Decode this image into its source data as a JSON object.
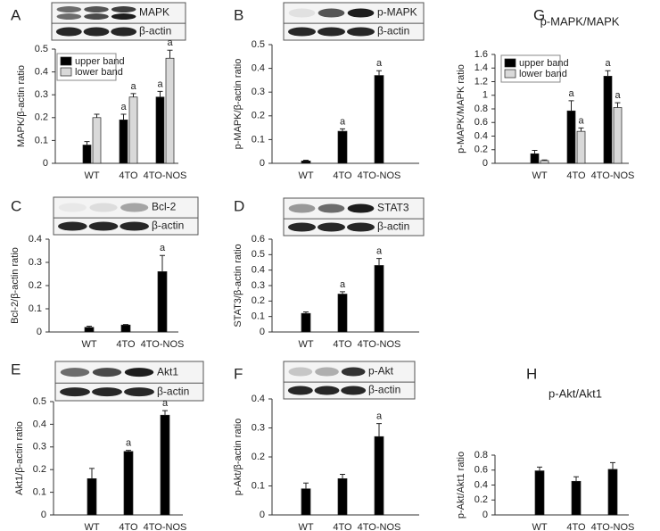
{
  "chart_data": [
    {
      "type": "bar",
      "panel": "A",
      "blot_labels": [
        "MAPK",
        "β-actin"
      ],
      "y_label": "MAPK/β-actin ratio",
      "categories": [
        "WT",
        "4TO",
        "4TO-NOS"
      ],
      "ylim": [
        0,
        0.5
      ],
      "yticks": [
        0,
        0.1,
        0.2,
        0.3,
        0.4,
        0.5
      ],
      "series": [
        {
          "name": "upper band",
          "color": "#000000",
          "values": [
            0.08,
            0.19,
            0.29
          ],
          "errors": [
            0.015,
            0.025,
            0.025
          ],
          "labels": [
            null,
            "a",
            "a"
          ]
        },
        {
          "name": "lower band",
          "color": "#d9d9d9",
          "values": [
            0.2,
            0.29,
            0.46
          ],
          "errors": [
            0.015,
            0.015,
            0.035
          ],
          "labels": [
            null,
            "a",
            "a"
          ]
        }
      ]
    },
    {
      "type": "bar",
      "panel": "B",
      "blot_labels": [
        "p-MAPK",
        "β-actin"
      ],
      "y_label": "p-MAPK/β-actin ratio",
      "categories": [
        "WT",
        "4TO",
        "4TO-NOS"
      ],
      "ylim": [
        0,
        0.5
      ],
      "yticks": [
        0,
        0.1,
        0.2,
        0.3,
        0.4,
        0.5
      ],
      "color": "#000000",
      "values": [
        0.01,
        0.135,
        0.37
      ],
      "errors": [
        0.003,
        0.01,
        0.02
      ],
      "labels": [
        null,
        "a",
        "a"
      ]
    },
    {
      "type": "bar",
      "panel": "G",
      "title": "p-MAPK/MAPK",
      "y_label": "p-MAPK/MAPK ratio",
      "categories": [
        "WT",
        "4TO",
        "4TO-NOS"
      ],
      "ylim": [
        0,
        1.6
      ],
      "yticks": [
        0,
        0.2,
        0.4,
        0.6,
        0.8,
        1,
        1.2,
        1.4,
        1.6
      ],
      "series": [
        {
          "name": "upper band",
          "color": "#000000",
          "values": [
            0.14,
            0.77,
            1.28
          ],
          "errors": [
            0.05,
            0.15,
            0.08
          ],
          "labels": [
            null,
            "a",
            "a"
          ]
        },
        {
          "name": "lower band",
          "color": "#d9d9d9",
          "values": [
            0.04,
            0.47,
            0.82
          ],
          "errors": [
            0.01,
            0.05,
            0.07
          ],
          "labels": [
            null,
            "a",
            "a"
          ]
        }
      ]
    },
    {
      "type": "bar",
      "panel": "C",
      "blot_labels": [
        "Bcl-2",
        "β-actin"
      ],
      "y_label": "Bcl-2/β-actin ratio",
      "categories": [
        "WT",
        "4TO",
        "4TO-NOS"
      ],
      "ylim": [
        0,
        0.4
      ],
      "yticks": [
        0,
        0.1,
        0.2,
        0.3,
        0.4
      ],
      "color": "#000000",
      "values": [
        0.02,
        0.03,
        0.26
      ],
      "errors": [
        0.005,
        0.002,
        0.07
      ],
      "labels": [
        null,
        null,
        "a"
      ]
    },
    {
      "type": "bar",
      "panel": "D",
      "blot_labels": [
        "STAT3",
        "β-actin"
      ],
      "y_label": "STAT3/β-actin ratio",
      "categories": [
        "WT",
        "4TO",
        "4TO-NOS"
      ],
      "ylim": [
        0,
        0.6
      ],
      "yticks": [
        0,
        0.1,
        0.2,
        0.3,
        0.4,
        0.5,
        0.6
      ],
      "color": "#000000",
      "values": [
        0.12,
        0.245,
        0.43
      ],
      "errors": [
        0.01,
        0.015,
        0.045
      ],
      "labels": [
        null,
        "a",
        "a"
      ]
    },
    {
      "type": "bar",
      "panel": "E",
      "blot_labels": [
        "Akt1",
        "β-actin"
      ],
      "y_label": "Akt1/β-actin ratio",
      "categories": [
        "WT",
        "4TO",
        "4TO-NOS"
      ],
      "ylim": [
        0,
        0.5
      ],
      "yticks": [
        0,
        0.1,
        0.2,
        0.3,
        0.4,
        0.5
      ],
      "color": "#000000",
      "values": [
        0.16,
        0.28,
        0.44
      ],
      "errors": [
        0.045,
        0.005,
        0.02
      ],
      "labels": [
        null,
        "a",
        "a"
      ]
    },
    {
      "type": "bar",
      "panel": "F",
      "blot_labels": [
        "p-Akt",
        "β-actin"
      ],
      "y_label": "p-Akt/β-actin ratio",
      "categories": [
        "WT",
        "4TO",
        "4TO-NOS"
      ],
      "ylim": [
        0,
        0.4
      ],
      "yticks": [
        0,
        0.1,
        0.2,
        0.3,
        0.4
      ],
      "color": "#000000",
      "values": [
        0.09,
        0.125,
        0.27
      ],
      "errors": [
        0.02,
        0.015,
        0.045
      ],
      "labels": [
        null,
        null,
        "a"
      ]
    },
    {
      "type": "bar",
      "panel": "H",
      "title": "p-Akt/Akt1",
      "y_label": "p-Akt/Akt1 ratio",
      "categories": [
        "WT",
        "4TO",
        "4TO-NOS"
      ],
      "ylim": [
        0,
        0.8
      ],
      "yticks": [
        0,
        0.2,
        0.4,
        0.6,
        0.8
      ],
      "color": "#000000",
      "values": [
        0.59,
        0.45,
        0.61
      ],
      "errors": [
        0.05,
        0.06,
        0.09
      ]
    }
  ]
}
